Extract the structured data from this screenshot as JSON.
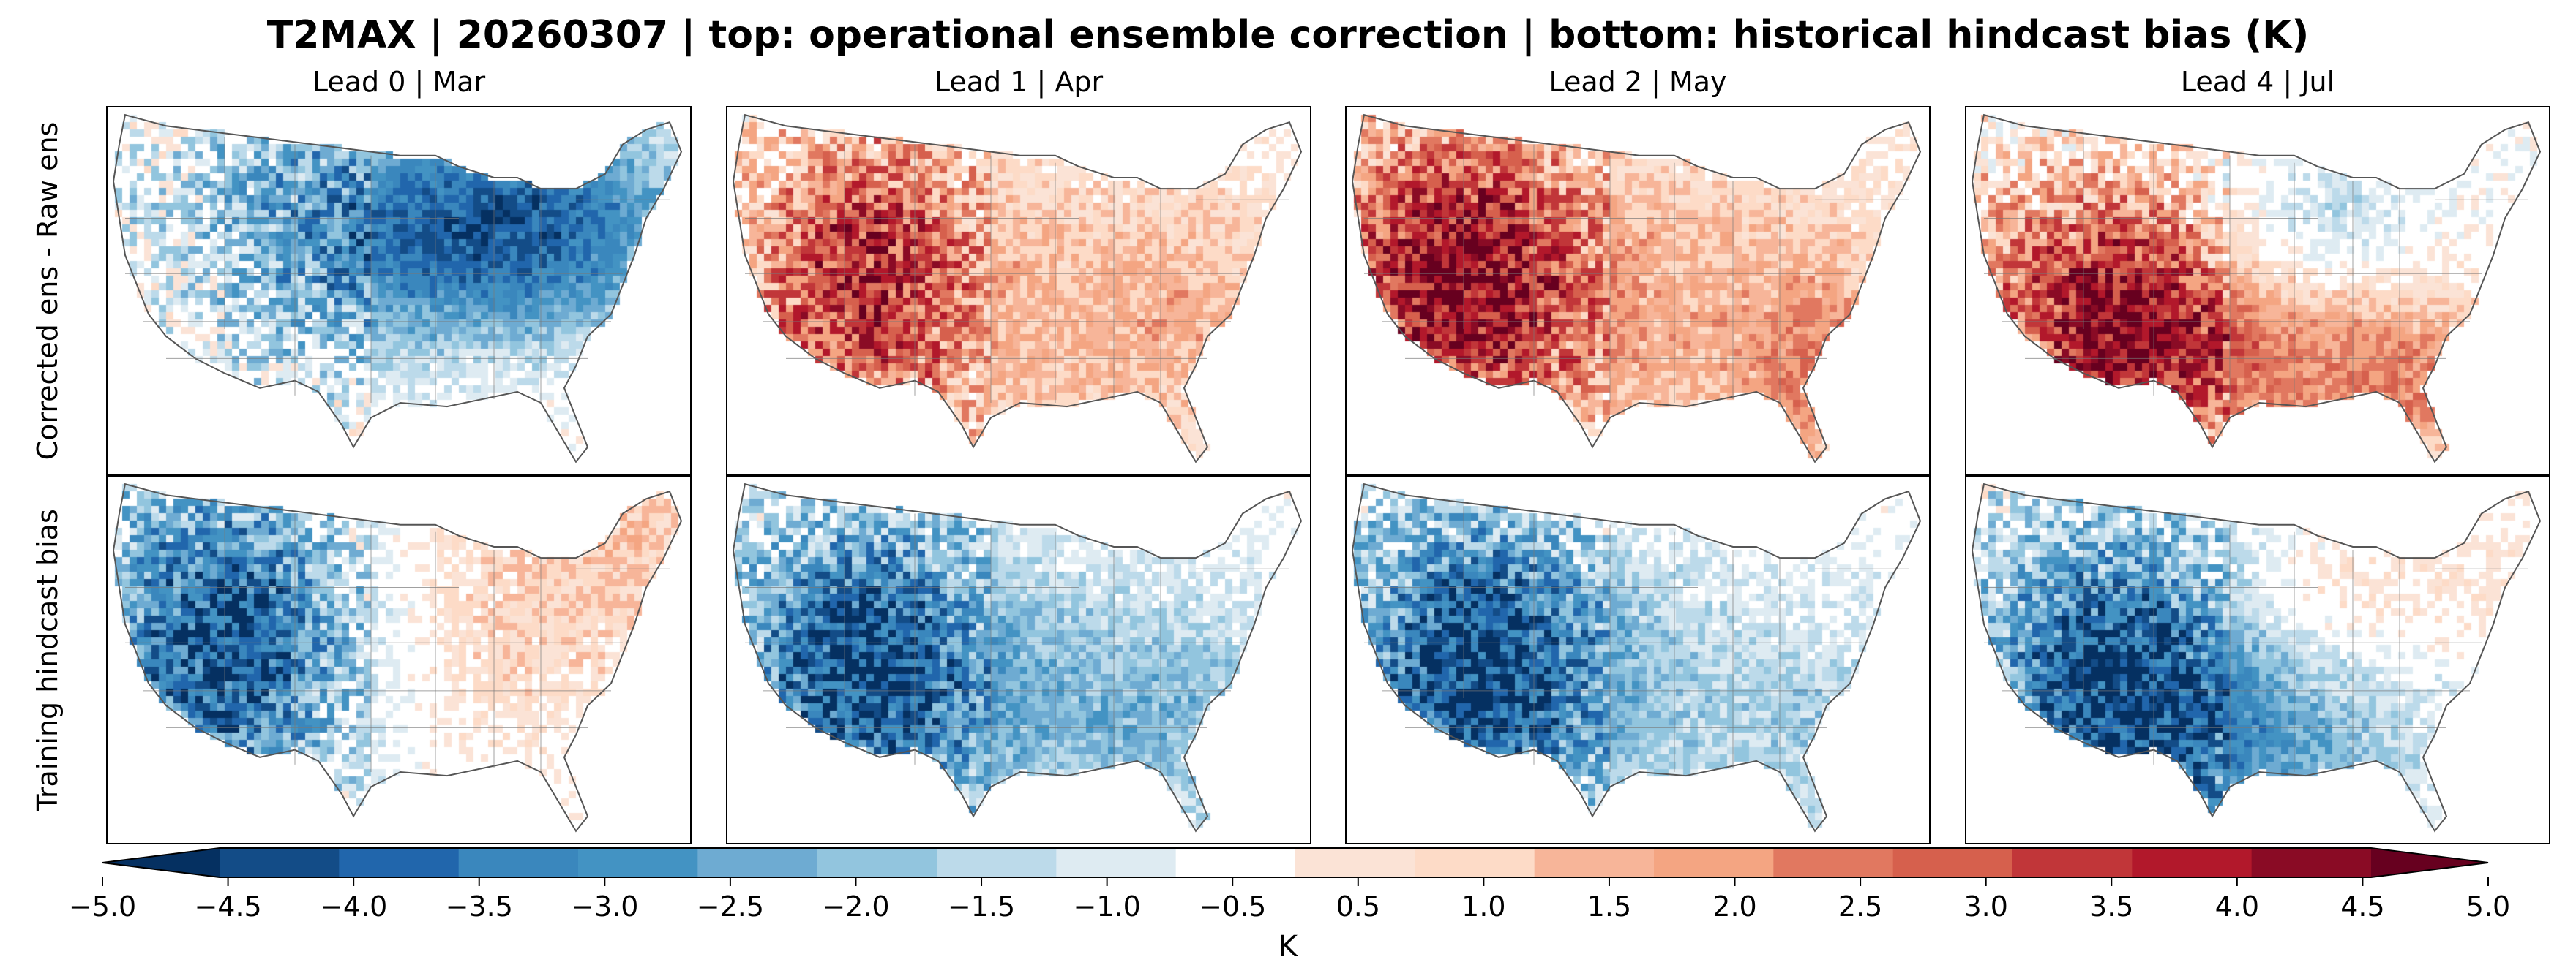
{
  "title": "T2MAX | 20260307 | top: operational ensemble correction | bottom: historical hindcast bias (K)",
  "columns": [
    {
      "label": "Lead 0 | Mar",
      "top": "cold",
      "bottom": "lead0"
    },
    {
      "label": "Lead 1 | Apr",
      "top": "warm1",
      "bottom": "cold1"
    },
    {
      "label": "Lead 2 | May",
      "top": "warm2",
      "bottom": "cold2"
    },
    {
      "label": "Lead 4 | Jul",
      "top": "warm4",
      "bottom": "cold4"
    }
  ],
  "rows": [
    {
      "label": "Corrected ens - Raw ens"
    },
    {
      "label": "Training hindcast bias"
    }
  ],
  "colorbar": {
    "label": "K",
    "min": -5.0,
    "max": 5.0,
    "ticks": [
      "−5.0",
      "−4.5",
      "−4.0",
      "−3.5",
      "−3.0",
      "−2.5",
      "−2.0",
      "−1.5",
      "−1.0",
      "−0.5",
      "0.5",
      "1.0",
      "1.5",
      "2.0",
      "2.5",
      "3.0",
      "3.5",
      "4.0",
      "4.5",
      "5.0"
    ],
    "tick_values": [
      -5.0,
      -4.5,
      -4.0,
      -3.5,
      -3.0,
      -2.5,
      -2.0,
      -1.5,
      -1.0,
      -0.5,
      0.5,
      1.0,
      1.5,
      2.0,
      2.5,
      3.0,
      3.5,
      4.0,
      4.5,
      5.0
    ],
    "bin_colors": [
      "#053061",
      "#134c87",
      "#2166ac",
      "#3a87bd",
      "#4393c3",
      "#6eabd2",
      "#92c5de",
      "#bcdaea",
      "#deebf2",
      "#ffffff",
      "#fbe3d6",
      "#fddbc7",
      "#f7b599",
      "#f4a582",
      "#e17860",
      "#d6604d",
      "#c13639",
      "#b2182b",
      "#8a0b25",
      "#67001f"
    ],
    "extend": "both"
  }
}
